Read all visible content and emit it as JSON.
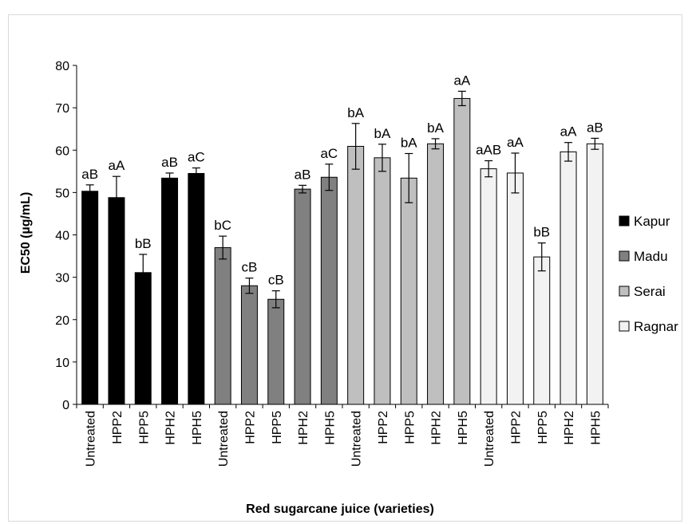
{
  "chart_data": {
    "type": "bar",
    "title": "",
    "xlabel": "Red sugarcane juice (varieties)",
    "ylabel": "EC50 (µg/mL)",
    "ylim": [
      0,
      80
    ],
    "yticks": [
      0,
      10,
      20,
      30,
      40,
      50,
      60,
      70,
      80
    ],
    "grid": false,
    "legend_position": "right",
    "categories": [
      "Untreated",
      "HPP2",
      "HPP5",
      "HPH2",
      "HPH5"
    ],
    "series": [
      {
        "name": "Kapur",
        "color": "#000000",
        "values": [
          50.3,
          48.8,
          31.1,
          53.4,
          54.5
        ],
        "errors": [
          1.5,
          5.0,
          4.3,
          1.2,
          1.3
        ],
        "labels": [
          "aB",
          "aA",
          "bB",
          "aB",
          "aC"
        ]
      },
      {
        "name": "Madu",
        "color": "#808080",
        "values": [
          37.0,
          28.0,
          24.8,
          50.8,
          53.6
        ],
        "errors": [
          2.7,
          1.8,
          2.0,
          0.9,
          3.1
        ],
        "labels": [
          "bC",
          "cB",
          "cB",
          "aB",
          "aC"
        ]
      },
      {
        "name": "Serai",
        "color": "#bfbfbf",
        "values": [
          60.9,
          58.2,
          53.4,
          61.5,
          72.2
        ],
        "errors": [
          5.4,
          3.2,
          5.8,
          1.2,
          1.7
        ],
        "labels": [
          "bA",
          "bA",
          "bA",
          "bA",
          "aA"
        ]
      },
      {
        "name": "Ragnar",
        "color": "#f2f2f2",
        "values": [
          55.6,
          54.6,
          34.8,
          59.6,
          61.5
        ],
        "errors": [
          1.9,
          4.7,
          3.3,
          2.2,
          1.3
        ],
        "labels": [
          "aAB",
          "aA",
          "bB",
          "aA",
          "aB"
        ]
      }
    ]
  }
}
